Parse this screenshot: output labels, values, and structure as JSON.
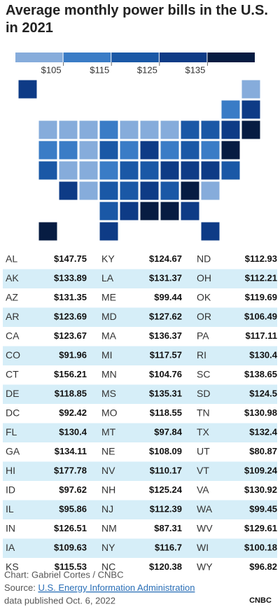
{
  "header": {
    "title": "Average monthly power bills in the U.S. in 2021"
  },
  "legend": {
    "colors": [
      "#86acdb",
      "#3a7cc6",
      "#1a58a6",
      "#0e3b86",
      "#071c42"
    ],
    "ticks": [
      {
        "value": 105,
        "label": "$105"
      },
      {
        "value": 115,
        "label": "$115"
      },
      {
        "value": 125,
        "label": "$125"
      },
      {
        "value": 135,
        "label": "$135"
      }
    ]
  },
  "table": {
    "columns": [
      [
        {
          "state": "AL",
          "value": 147.75,
          "label": "$147.75"
        },
        {
          "state": "AK",
          "value": 133.89,
          "label": "$133.89"
        },
        {
          "state": "AZ",
          "value": 131.35,
          "label": "$131.35"
        },
        {
          "state": "AR",
          "value": 123.69,
          "label": "$123.69"
        },
        {
          "state": "CA",
          "value": 123.67,
          "label": "$123.67"
        },
        {
          "state": "CO",
          "value": 91.96,
          "label": "$91.96"
        },
        {
          "state": "CT",
          "value": 156.21,
          "label": "$156.21"
        },
        {
          "state": "DE",
          "value": 118.85,
          "label": "$118.85"
        },
        {
          "state": "DC",
          "value": 92.42,
          "label": "$92.42"
        },
        {
          "state": "FL",
          "value": 130.4,
          "label": "$130.4"
        },
        {
          "state": "GA",
          "value": 134.11,
          "label": "$134.11"
        },
        {
          "state": "HI",
          "value": 177.78,
          "label": "$177.78"
        },
        {
          "state": "ID",
          "value": 97.62,
          "label": "$97.62"
        },
        {
          "state": "IL",
          "value": 95.86,
          "label": "$95.86"
        },
        {
          "state": "IN",
          "value": 126.51,
          "label": "$126.51"
        },
        {
          "state": "IA",
          "value": 109.63,
          "label": "$109.63"
        },
        {
          "state": "KS",
          "value": 115.53,
          "label": "$115.53"
        }
      ],
      [
        {
          "state": "KY",
          "value": 124.67,
          "label": "$124.67"
        },
        {
          "state": "LA",
          "value": 131.37,
          "label": "$131.37"
        },
        {
          "state": "ME",
          "value": 99.44,
          "label": "$99.44"
        },
        {
          "state": "MD",
          "value": 127.62,
          "label": "$127.62"
        },
        {
          "state": "MA",
          "value": 136.37,
          "label": "$136.37"
        },
        {
          "state": "MI",
          "value": 117.57,
          "label": "$117.57"
        },
        {
          "state": "MN",
          "value": 104.76,
          "label": "$104.76"
        },
        {
          "state": "MS",
          "value": 135.31,
          "label": "$135.31"
        },
        {
          "state": "MO",
          "value": 118.55,
          "label": "$118.55"
        },
        {
          "state": "MT",
          "value": 97.84,
          "label": "$97.84"
        },
        {
          "state": "NE",
          "value": 108.09,
          "label": "$108.09"
        },
        {
          "state": "NV",
          "value": 110.17,
          "label": "$110.17"
        },
        {
          "state": "NH",
          "value": 125.24,
          "label": "$125.24"
        },
        {
          "state": "NJ",
          "value": 112.39,
          "label": "$112.39"
        },
        {
          "state": "NM",
          "value": 87.31,
          "label": "$87.31"
        },
        {
          "state": "NY",
          "value": 116.7,
          "label": "$116.7"
        },
        {
          "state": "NC",
          "value": 120.38,
          "label": "$120.38"
        }
      ],
      [
        {
          "state": "ND",
          "value": 112.93,
          "label": "$112.93"
        },
        {
          "state": "OH",
          "value": 112.21,
          "label": "$112.21"
        },
        {
          "state": "OK",
          "value": 119.69,
          "label": "$119.69"
        },
        {
          "state": "OR",
          "value": 106.49,
          "label": "$106.49"
        },
        {
          "state": "PA",
          "value": 117.11,
          "label": "$117.11"
        },
        {
          "state": "RI",
          "value": 130.4,
          "label": "$130.4"
        },
        {
          "state": "SC",
          "value": 138.65,
          "label": "$138.65"
        },
        {
          "state": "SD",
          "value": 124.5,
          "label": "$124.5"
        },
        {
          "state": "TN",
          "value": 130.98,
          "label": "$130.98"
        },
        {
          "state": "TX",
          "value": 132.4,
          "label": "$132.4"
        },
        {
          "state": "UT",
          "value": 80.87,
          "label": "$80.87"
        },
        {
          "state": "VT",
          "value": 109.24,
          "label": "$109.24"
        },
        {
          "state": "VA",
          "value": 130.92,
          "label": "$130.92"
        },
        {
          "state": "WA",
          "value": 99.45,
          "label": "$99.45"
        },
        {
          "state": "WV",
          "value": 129.61,
          "label": "$129.61"
        },
        {
          "state": "WI",
          "value": 100.18,
          "label": "$100.18"
        },
        {
          "state": "WY",
          "value": 96.82,
          "label": "$96.82"
        }
      ]
    ]
  },
  "footer": {
    "credit": "Chart: Gabriel Cortes / CNBC",
    "source_prefix": "Source:",
    "source_link": "U.S. Energy Information Administration",
    "source_suffix": "data published Oct. 6, 2022",
    "logo": "CNBC"
  }
}
